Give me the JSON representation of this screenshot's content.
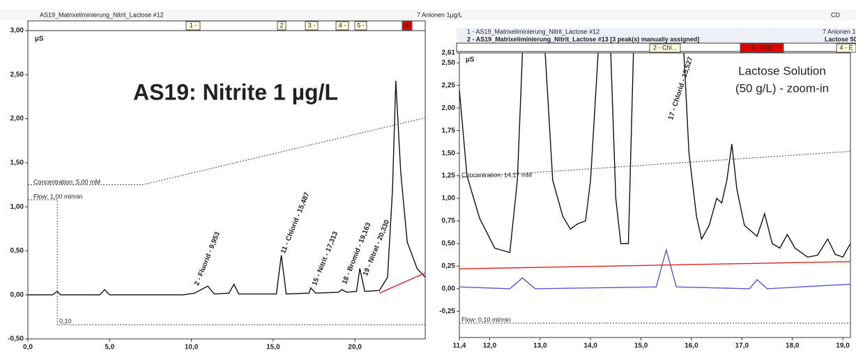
{
  "chart_data": [
    {
      "type": "line",
      "headers": [
        "AS19_Matrixeliminierung_Nitrit_Lactose #12",
        "7 Anionen 1µg/L",
        "CD"
      ],
      "boxes": [
        "1 -",
        "2",
        "3 -",
        "4 -",
        "5 -",
        "6"
      ],
      "title": "AS19: Nitrite 1 µg/L",
      "ylabel": "µS",
      "xlim": [
        0,
        24.3
      ],
      "ylim": [
        -0.5,
        3.0
      ],
      "xticks": [
        {
          "value": 0,
          "label": "0,0"
        },
        {
          "value": 5,
          "label": "5,0"
        },
        {
          "value": 10,
          "label": "10,0"
        },
        {
          "value": 15,
          "label": "15,0"
        },
        {
          "value": 20,
          "label": "20,0"
        }
      ],
      "yticks": [
        {
          "value": -0.5,
          "label": "-0,50"
        },
        {
          "value": 0,
          "label": "0,00"
        },
        {
          "value": 0.5,
          "label": "0,50"
        },
        {
          "value": 1.0,
          "label": "1,00"
        },
        {
          "value": 1.5,
          "label": "1,50"
        },
        {
          "value": 2.0,
          "label": "2,00"
        },
        {
          "value": 2.5,
          "label": "2,50"
        },
        {
          "value": 3.0,
          "label": "3,00"
        }
      ],
      "series": [
        {
          "color": "#111111",
          "dash": false,
          "x": [
            0,
            1.5,
            1.8,
            2.0,
            4.4,
            4.7,
            5.0,
            9.5,
            10.2,
            11.0,
            11.4,
            12.3,
            12.6,
            12.9,
            15.2,
            15.5,
            15.8,
            17.2,
            17.3,
            17.6,
            19.0,
            19.2,
            19.5,
            20.1,
            20.3,
            20.6,
            21.5,
            22.0,
            22.3,
            22.5,
            22.8,
            23.2,
            23.8,
            24.3
          ],
          "values": [
            0,
            0,
            0.04,
            0,
            0,
            0.06,
            0,
            0,
            0.02,
            0.1,
            0.01,
            0.02,
            0.12,
            0.01,
            0.01,
            0.45,
            0.01,
            0.02,
            0.08,
            0.02,
            0.03,
            0.06,
            0.03,
            0.04,
            0.3,
            0.04,
            0.05,
            0.2,
            1.2,
            2.43,
            1.4,
            0.6,
            0.3,
            0.2
          ]
        },
        {
          "color": "#444444",
          "dash": true,
          "x": [
            0,
            7,
            24.3
          ],
          "values": [
            1.25,
            1.25,
            2.01
          ]
        },
        {
          "color": "#444444",
          "dash": true,
          "x": [
            0,
            1.8,
            1.8,
            24.3
          ],
          "values": [
            1.08,
            1.08,
            -0.34,
            -0.34
          ]
        },
        {
          "color": "#e02020",
          "dash": false,
          "x": [
            21.5,
            24.3
          ],
          "values": [
            0.02,
            0.25
          ]
        }
      ],
      "annotations": [
        "Concentration: 5,00 mM",
        "Flow: 1,00 ml/min",
        "0,10",
        "2 - Fluorid - 9,953",
        "11 - Chlorid - 15,487",
        "15 - Nitrit - 17,313",
        "18 - Bromid - 19,163",
        "19 - Nitrat - 20,330"
      ]
    },
    {
      "type": "line",
      "headers": [
        "1 - AS19_Matrixeliminierung_Nitrit_Lactose #12",
        "7 Anionen 1",
        "2 - AS19_Matrixeliminierung_Nitrit_Lactose #13 [3 peak(s) manually assigned]",
        "Lactose 50"
      ],
      "boxes": [
        "2 - Chl...",
        "3 - Nitrit",
        "4 - E"
      ],
      "ylabel": "µS",
      "xlim": [
        11.4,
        19.15
      ],
      "ylim": [
        -0.54,
        2.61
      ],
      "xticks": [
        {
          "value": 11.4,
          "label": "11,4"
        },
        {
          "value": 12,
          "label": "12,0"
        },
        {
          "value": 13,
          "label": "13,0"
        },
        {
          "value": 14,
          "label": "14,0"
        },
        {
          "value": 15,
          "label": "15,0"
        },
        {
          "value": 16,
          "label": "16,0"
        },
        {
          "value": 17,
          "label": "17,0"
        },
        {
          "value": 18,
          "label": "18,0"
        },
        {
          "value": 19,
          "label": "19,0"
        }
      ],
      "yticks": [
        {
          "value": -0.25,
          "label": "-0,25"
        },
        {
          "value": 0,
          "label": "0,00"
        },
        {
          "value": 0.25,
          "label": "0,25"
        },
        {
          "value": 0.5,
          "label": "0,50"
        },
        {
          "value": 0.75,
          "label": "0,75"
        },
        {
          "value": 1.0,
          "label": "1,00"
        },
        {
          "value": 1.25,
          "label": "1,25"
        },
        {
          "value": 1.5,
          "label": "1,50"
        },
        {
          "value": 1.75,
          "label": "1,75"
        },
        {
          "value": 2.0,
          "label": "2,00"
        },
        {
          "value": 2.25,
          "label": "2,25"
        },
        {
          "value": 2.5,
          "label": "2,50"
        },
        {
          "value": 2.61,
          "label": "2,61"
        }
      ],
      "series": [
        {
          "color": "#111111",
          "dash": false,
          "x": [
            11.4,
            11.55,
            11.8,
            12.1,
            12.4,
            12.55,
            12.65,
            12.9,
            13.1,
            13.25,
            13.45,
            13.6,
            13.75,
            13.9,
            14.0,
            14.15,
            14.3,
            14.4,
            14.5,
            14.6,
            14.75,
            14.85,
            15.3,
            15.85,
            15.95,
            16.1,
            16.2,
            16.35,
            16.5,
            16.6,
            16.7,
            16.8,
            16.9,
            17.05,
            17.2,
            17.3,
            17.45,
            17.6,
            17.75,
            17.9,
            18.05,
            18.3,
            18.5,
            18.7,
            18.85,
            19.0,
            19.15
          ],
          "values": [
            2.2,
            1.25,
            0.78,
            0.45,
            0.4,
            1.2,
            2.61,
            null,
            2.61,
            1.2,
            0.8,
            0.66,
            0.72,
            0.75,
            1.2,
            2.61,
            null,
            2.61,
            1.0,
            0.5,
            0.5,
            2.61,
            null,
            2.61,
            1.5,
            0.8,
            0.55,
            0.7,
            1.0,
            0.95,
            1.2,
            1.6,
            1.1,
            0.7,
            0.63,
            0.58,
            0.83,
            0.5,
            0.45,
            0.6,
            0.45,
            0.35,
            0.37,
            0.55,
            0.38,
            0.35,
            0.5
          ]
        },
        {
          "color": "#5555dd",
          "dash": false,
          "x": [
            11.4,
            12.4,
            12.65,
            12.9,
            15.3,
            15.5,
            15.7,
            17.15,
            17.3,
            17.5,
            19.15
          ],
          "values": [
            0.02,
            0,
            0.12,
            0,
            0.02,
            0.43,
            0.02,
            0,
            0.1,
            0,
            0.05
          ]
        },
        {
          "color": "#e02020",
          "dash": false,
          "x": [
            11.4,
            19.15
          ],
          "values": [
            0.22,
            0.3
          ]
        },
        {
          "color": "#444444",
          "dash": true,
          "x": [
            11.4,
            19.15
          ],
          "values": [
            1.23,
            1.52
          ]
        },
        {
          "color": "#444444",
          "dash": true,
          "x": [
            11.4,
            19.15
          ],
          "values": [
            -0.38,
            -0.38
          ]
        }
      ],
      "annotations": [
        "17 - Chlorid - 15,527",
        "Concentration: 14,17 mM",
        "Flow: 0,10 ml/min",
        "Lactose Solution",
        "(50 g/L) - zoom-in"
      ]
    }
  ]
}
